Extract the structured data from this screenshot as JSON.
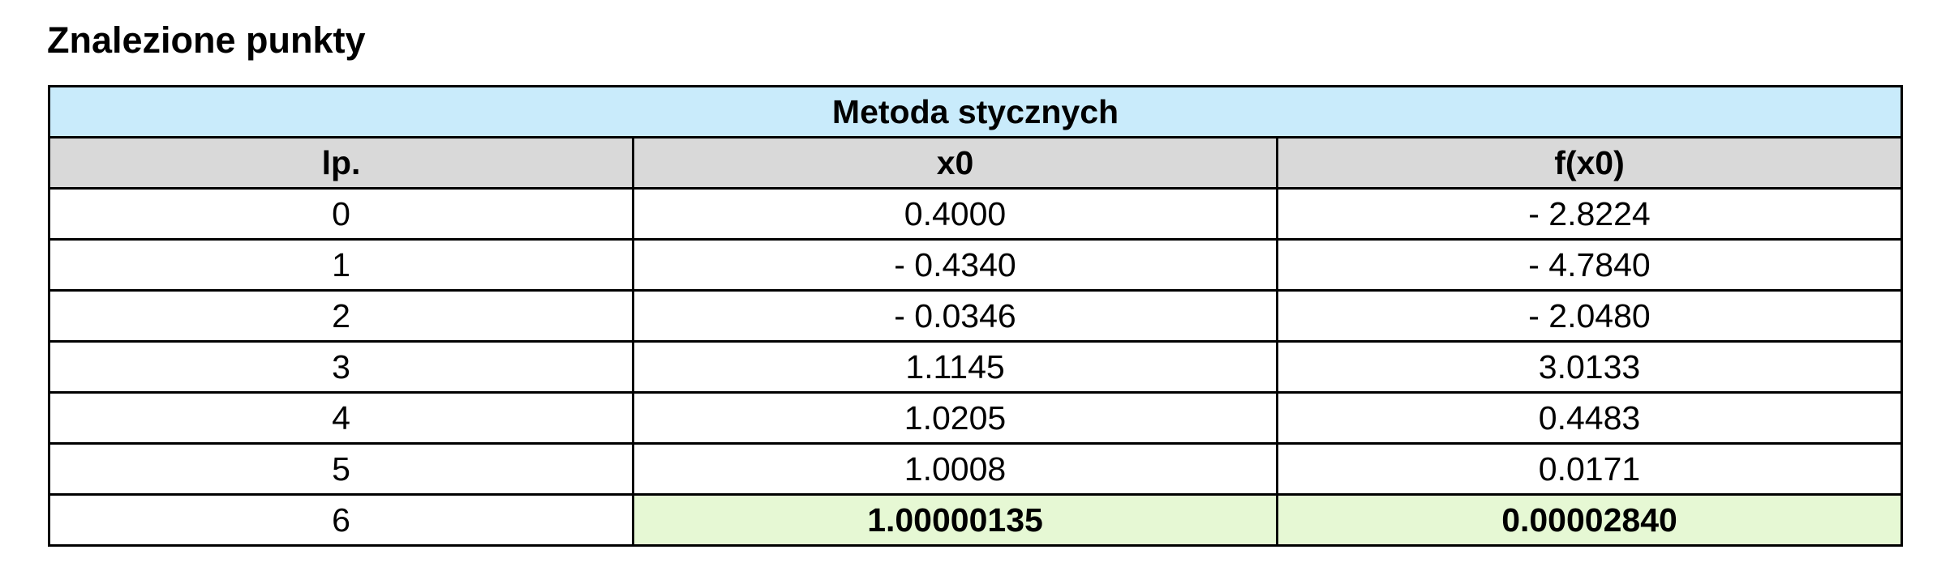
{
  "heading": "Znalezione punkty",
  "table": {
    "title": "Metoda stycznych",
    "headers": [
      "lp.",
      "x0",
      "f(x0)"
    ],
    "rows": [
      [
        "0",
        "0.4000",
        "- 2.8224"
      ],
      [
        "1",
        "- 0.4340",
        "- 4.7840"
      ],
      [
        "2",
        "- 0.0346",
        "- 2.0480"
      ],
      [
        "3",
        "1.1145",
        "3.0133"
      ],
      [
        "4",
        "1.0205",
        "0.4483"
      ],
      [
        "5",
        "1.0008",
        "0.0171"
      ],
      [
        "6",
        "1.00000135",
        "0.00002840"
      ]
    ],
    "colors": {
      "title_bg": "#c9ebfb",
      "header_bg": "#d9d9d9",
      "highlight_bg": "#e6f8d4"
    }
  }
}
